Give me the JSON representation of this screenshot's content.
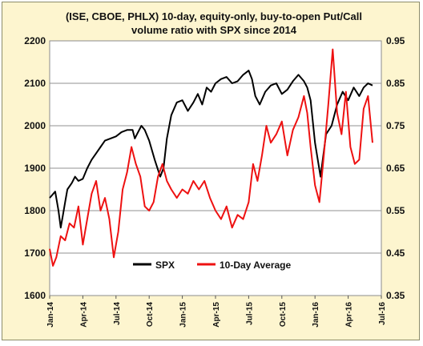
{
  "chart_data": {
    "type": "line",
    "title_line1": "(ISE, CBOE, PHLX) 10-day, equity-only, buy-to-open Put/Call",
    "title_line2": "volume ratio with SPX since 2014",
    "x_tick_labels": [
      "Jan-14",
      "Apr-14",
      "Jul-14",
      "Oct-14",
      "Jan-15",
      "Apr-15",
      "Jul-15",
      "Oct-15",
      "Jan-16",
      "Apr-16",
      "Jul-16"
    ],
    "x_range_months": [
      0,
      30
    ],
    "y_left": {
      "ticks": [
        "1600",
        "1700",
        "1800",
        "1900",
        "2000",
        "2100",
        "2200"
      ],
      "range": [
        1600,
        2200
      ]
    },
    "y_right": {
      "ticks": [
        "0.35",
        "0.45",
        "0.55",
        "0.65",
        "0.75",
        "0.85",
        "0.95"
      ],
      "range": [
        0.35,
        0.95
      ]
    },
    "grid": "horizontal",
    "legend_placement": "bottom-center",
    "series": [
      {
        "name": "SPX",
        "axis": "left",
        "color": "#000000",
        "x": [
          0,
          0.5,
          0.8,
          1,
          1.2,
          1.4,
          1.6,
          2,
          2.3,
          2.6,
          3,
          3.4,
          3.8,
          4.2,
          4.6,
          5,
          5.5,
          6,
          6.5,
          7,
          7.5,
          7.7,
          7.9,
          8.3,
          8.6,
          9,
          9.5,
          10,
          10.3,
          10.6,
          11,
          11.5,
          12,
          12.5,
          13,
          13.4,
          13.8,
          14.2,
          14.6,
          15,
          15.5,
          16,
          16.5,
          17,
          17.5,
          18,
          18.3,
          18.6,
          19,
          19.5,
          20,
          20.5,
          21,
          21.5,
          22,
          22.5,
          23,
          23.3,
          23.6,
          24,
          24.5,
          25,
          25.5,
          26,
          26.5,
          27,
          27.5,
          28,
          28.4,
          28.8,
          29.2
        ],
        "y": [
          1830,
          1845,
          1800,
          1760,
          1790,
          1820,
          1850,
          1865,
          1880,
          1870,
          1875,
          1900,
          1920,
          1935,
          1950,
          1965,
          1970,
          1975,
          1985,
          1990,
          1990,
          1970,
          1980,
          2000,
          1990,
          1965,
          1920,
          1880,
          1900,
          1970,
          2025,
          2055,
          2060,
          2035,
          2055,
          2075,
          2050,
          2090,
          2080,
          2100,
          2110,
          2115,
          2100,
          2105,
          2120,
          2130,
          2110,
          2070,
          2050,
          2080,
          2095,
          2100,
          2075,
          2085,
          2105,
          2120,
          2105,
          2090,
          2060,
          1960,
          1880,
          1980,
          2000,
          2050,
          2080,
          2060,
          2090,
          2070,
          2090,
          2100,
          2095
        ]
      },
      {
        "name": "10-Day Average",
        "axis": "right",
        "color": "#ee1111",
        "x": [
          0,
          0.3,
          0.6,
          1,
          1.4,
          1.8,
          2.2,
          2.6,
          3,
          3.4,
          3.8,
          4.2,
          4.6,
          5,
          5.4,
          5.8,
          6.2,
          6.6,
          7,
          7.4,
          7.8,
          8.2,
          8.6,
          9,
          9.4,
          9.8,
          10.2,
          10.6,
          11,
          11.5,
          12,
          12.5,
          13,
          13.5,
          14,
          14.5,
          15,
          15.5,
          16,
          16.5,
          17,
          17.5,
          18,
          18.4,
          18.8,
          19.2,
          19.6,
          20,
          20.5,
          21,
          21.5,
          22,
          22.5,
          23,
          23.3,
          23.6,
          24,
          24.4,
          24.8,
          25.2,
          25.6,
          26,
          26.4,
          26.8,
          27.2,
          27.6,
          28,
          28.4,
          28.8,
          29.2
        ],
        "y": [
          0.46,
          0.42,
          0.44,
          0.49,
          0.48,
          0.52,
          0.51,
          0.56,
          0.47,
          0.53,
          0.59,
          0.62,
          0.55,
          0.58,
          0.53,
          0.44,
          0.5,
          0.6,
          0.64,
          0.7,
          0.66,
          0.63,
          0.56,
          0.55,
          0.57,
          0.63,
          0.66,
          0.62,
          0.6,
          0.58,
          0.6,
          0.59,
          0.62,
          0.6,
          0.62,
          0.58,
          0.55,
          0.53,
          0.56,
          0.51,
          0.54,
          0.53,
          0.57,
          0.66,
          0.62,
          0.68,
          0.75,
          0.71,
          0.73,
          0.76,
          0.68,
          0.74,
          0.77,
          0.82,
          0.78,
          0.7,
          0.61,
          0.57,
          0.68,
          0.8,
          0.93,
          0.78,
          0.73,
          0.83,
          0.7,
          0.66,
          0.67,
          0.79,
          0.82,
          0.71
        ]
      }
    ]
  }
}
